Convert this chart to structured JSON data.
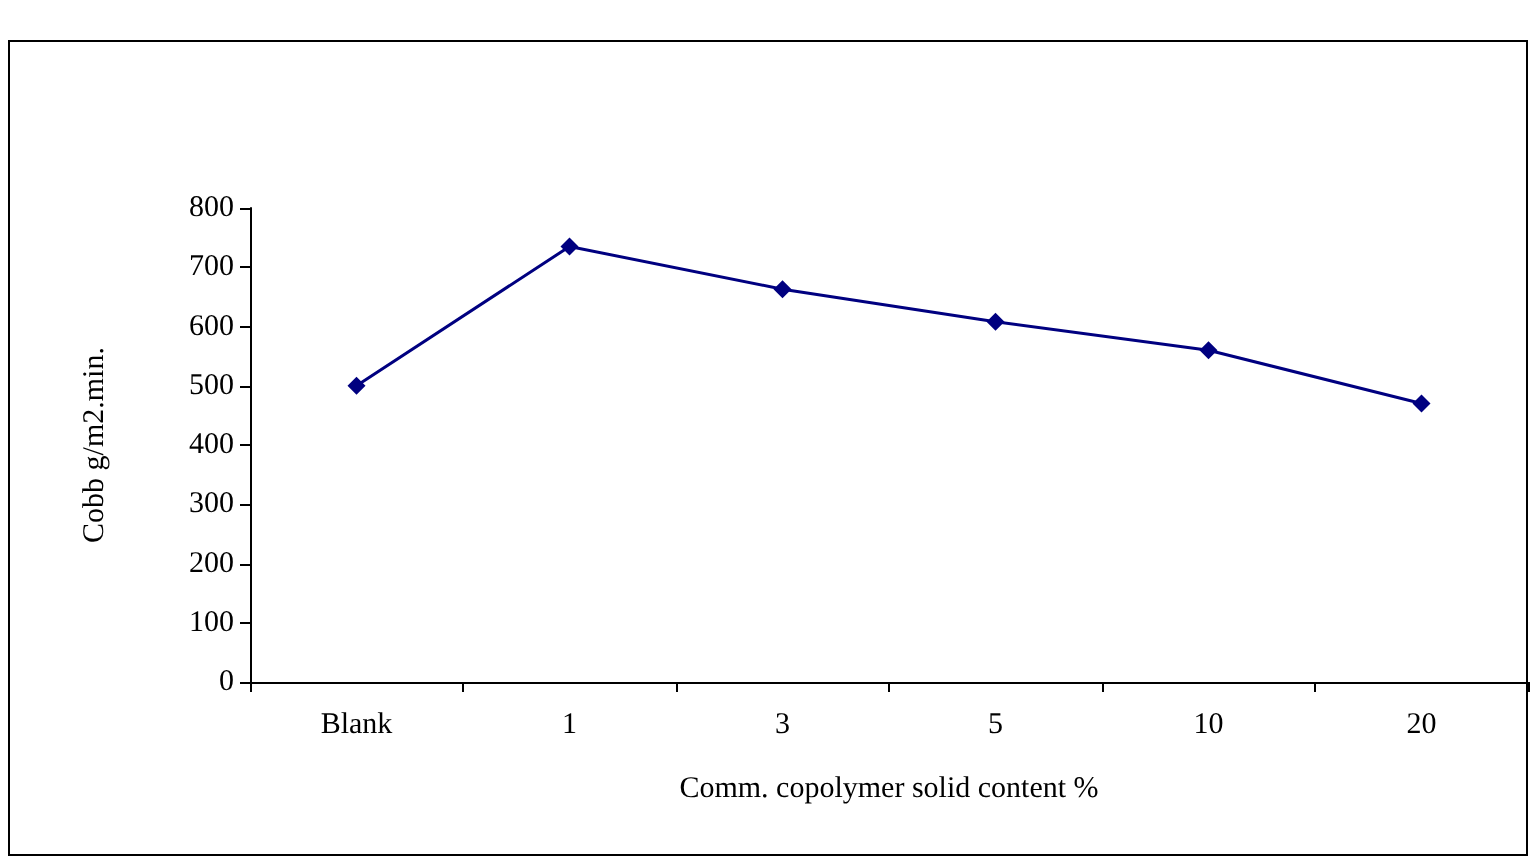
{
  "chart_data": {
    "type": "line",
    "xlabel": "Comm. copolymer solid content %",
    "ylabel": "Cobb g/m2.min.",
    "categories": [
      "Blank",
      "1",
      "3",
      "5",
      "10",
      "20"
    ],
    "series": [
      {
        "color": "#000080",
        "values": [
          500,
          735,
          663,
          608,
          560,
          470
        ]
      }
    ],
    "ylim": [
      0,
      800
    ],
    "yticks": [
      0,
      100,
      200,
      300,
      400,
      500,
      600,
      700,
      800
    ],
    "grid": false,
    "marker": "diamond",
    "line_style": "solid"
  }
}
